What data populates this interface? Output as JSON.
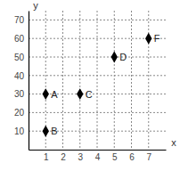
{
  "chart_data": {
    "type": "scatter",
    "x_label": "x",
    "y_label": "y",
    "x": [
      1,
      1,
      3,
      5,
      7
    ],
    "values": [
      30,
      10,
      30,
      50,
      60
    ],
    "annotations": [
      "A",
      "B",
      "C",
      "D",
      "F"
    ],
    "color": "#000000",
    "marker": "diamond",
    "xlim": [
      0,
      8
    ],
    "xticks": [
      1,
      2,
      3,
      4,
      5,
      6,
      7
    ],
    "ylim": [
      0,
      75
    ],
    "yticks": [
      10,
      20,
      30,
      40,
      50,
      60,
      70
    ],
    "grid": true
  }
}
